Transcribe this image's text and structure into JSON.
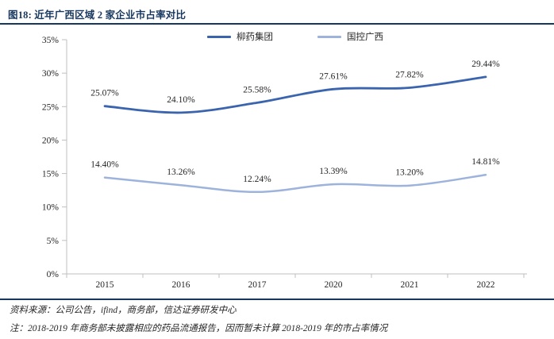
{
  "title": "图18: 近年广西区域 2 家企业市占率对比",
  "legend": [
    {
      "label": "柳药集团",
      "color": "#3A64AE"
    },
    {
      "label": "国控广西",
      "color": "#9DB3DC"
    }
  ],
  "chart_data": {
    "type": "line",
    "title": "近年广西区域 2 家企业市占率对比",
    "categories": [
      "2015",
      "2016",
      "2017",
      "2020",
      "2021",
      "2022"
    ],
    "series": [
      {
        "name": "柳药集团",
        "color": "#3A64AE",
        "stroke_width": 2.8,
        "values": [
          25.07,
          24.1,
          25.58,
          27.61,
          27.82,
          29.44
        ],
        "labels": [
          "25.07%",
          "24.10%",
          "25.58%",
          "27.61%",
          "27.82%",
          "29.44%"
        ]
      },
      {
        "name": "国控广西",
        "color": "#9DB3DC",
        "stroke_width": 2.5,
        "values": [
          14.4,
          13.26,
          12.24,
          13.39,
          13.2,
          14.81
        ],
        "labels": [
          "14.40%",
          "13.26%",
          "12.24%",
          "13.39%",
          "13.20%",
          "14.81%"
        ]
      }
    ],
    "ylim": [
      0,
      35
    ],
    "ytick_values": [
      0,
      5,
      10,
      15,
      20,
      25,
      30,
      35
    ],
    "ytick_labels": [
      "0%",
      "5%",
      "10%",
      "15%",
      "20%",
      "25%",
      "30%",
      "35%"
    ],
    "grid": false,
    "legend_position": "top-center",
    "smooth": true
  },
  "footer": {
    "source": "资料来源：公司公告，ifind，商务部，信达证券研发中心",
    "note": "注：2018-2019 年商务部未披露相应的药品流通报告，因而暂未计算 2018-2019 年的市占率情况"
  },
  "colors": {
    "title_navy": "#17375E",
    "axis_gray": "#BFBFBF",
    "text_dark": "#262626",
    "series_dark": "#3A64AE",
    "series_light": "#9DB3DC"
  }
}
